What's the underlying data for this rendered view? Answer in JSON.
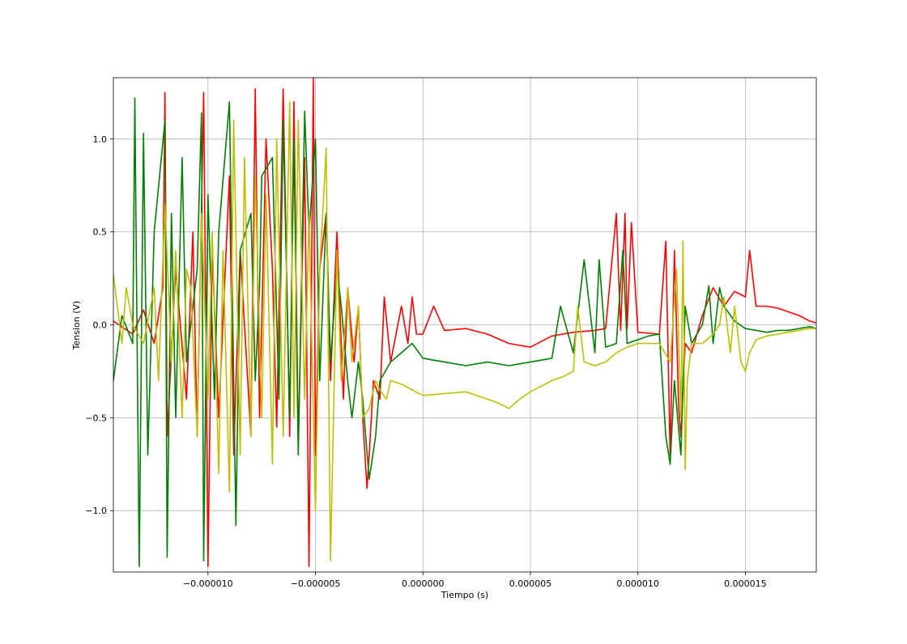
{
  "chart_data": {
    "type": "line",
    "title": "",
    "xlabel": "Tiempo (s)",
    "ylabel": "Tension (V)",
    "xlim": [
      -1.44e-05,
      1.83e-05
    ],
    "ylim": [
      -1.33,
      1.33
    ],
    "grid": true,
    "legend": "none",
    "x_ticks": [
      {
        "value": -1e-05,
        "label": "−0.000010"
      },
      {
        "value": -5e-06,
        "label": "−0.000005"
      },
      {
        "value": 0.0,
        "label": "0.000000"
      },
      {
        "value": 5e-06,
        "label": "0.000005"
      },
      {
        "value": 1e-05,
        "label": "0.000010"
      },
      {
        "value": 1.5e-05,
        "label": "0.000015"
      }
    ],
    "y_ticks": [
      {
        "value": 1.0,
        "label": "1.0"
      },
      {
        "value": 0.5,
        "label": "0.5"
      },
      {
        "value": 0.0,
        "label": "0.0"
      },
      {
        "value": -0.5,
        "label": "−0.5"
      },
      {
        "value": -1.0,
        "label": "−1.0"
      }
    ],
    "series": [
      {
        "color": "#ff0000",
        "x": [
          -1.44e-05,
          -1.35e-05,
          -1.3e-05,
          -1.25e-05,
          -1.21e-05,
          -1.2e-05,
          -1.19e-05,
          -1.15e-05,
          -1.1e-05,
          -1.07e-05,
          -1.05e-05,
          -1.02e-05,
          -1e-05,
          -9.8e-06,
          -9.5e-06,
          -9e-06,
          -8.8e-06,
          -8.5e-06,
          -8e-06,
          -7.8e-06,
          -7.6e-06,
          -7.3e-06,
          -7e-06,
          -6.8e-06,
          -6.5e-06,
          -6.2e-06,
          -6e-06,
          -5.8e-06,
          -5.5e-06,
          -5.3e-06,
          -5.1e-06,
          -5e-06,
          -4.8e-06,
          -4.5e-06,
          -4.3e-06,
          -4e-06,
          -3.7e-06,
          -3.5e-06,
          -3.2e-06,
          -3e-06,
          -2.8e-06,
          -2.6e-06,
          -2.5e-06,
          -2.3e-06,
          -2e-06,
          -1.8e-06,
          -1.5e-06,
          -1e-06,
          -7e-07,
          -5e-07,
          -3e-07,
          0.0,
          5e-07,
          1e-06,
          2e-06,
          3e-06,
          4e-06,
          5e-06,
          6e-06,
          7e-06,
          8e-06,
          8.5e-06,
          9e-06,
          9.2e-06,
          9.4e-06,
          9.5e-06,
          9.7e-06,
          1e-05,
          1.1e-05,
          1.13e-05,
          1.15e-05,
          1.17e-05,
          1.19e-05,
          1.2e-05,
          1.22e-05,
          1.25e-05,
          1.3e-05,
          1.35e-05,
          1.4e-05,
          1.45e-05,
          1.5e-05,
          1.52e-05,
          1.55e-05,
          1.6e-05,
          1.65e-05,
          1.7e-05,
          1.75e-05,
          1.8e-05,
          1.83e-05
        ],
        "y": [
          0.02,
          -0.05,
          0.08,
          -0.1,
          0.2,
          1.25,
          -0.6,
          0.3,
          -0.4,
          0.5,
          -0.6,
          1.25,
          -1.3,
          0.4,
          -0.5,
          0.8,
          -0.7,
          0.4,
          -0.6,
          1.27,
          -0.5,
          1.0,
          0.3,
          -0.55,
          1.27,
          -0.6,
          1.2,
          -0.65,
          0.9,
          -1.3,
          1.33,
          -0.7,
          0.3,
          0.6,
          -0.3,
          0.5,
          -0.4,
          0.2,
          -0.2,
          0.1,
          -0.5,
          -0.88,
          -0.7,
          -0.3,
          -0.4,
          0.15,
          -0.2,
          0.1,
          -0.1,
          0.15,
          -0.05,
          -0.05,
          0.1,
          -0.03,
          -0.02,
          -0.05,
          -0.1,
          -0.12,
          -0.06,
          -0.04,
          -0.03,
          -0.02,
          0.6,
          -0.03,
          0.6,
          -0.02,
          0.55,
          -0.04,
          -0.05,
          0.45,
          -0.7,
          0.4,
          -0.45,
          -0.6,
          -0.1,
          -0.15,
          0.05,
          0.2,
          0.1,
          0.18,
          0.15,
          0.4,
          0.1,
          0.1,
          0.09,
          0.07,
          0.05,
          0.02,
          0.01
        ]
      },
      {
        "color": "#008000",
        "x": [
          -1.44e-05,
          -1.4e-05,
          -1.35e-05,
          -1.34e-05,
          -1.32e-05,
          -1.3e-05,
          -1.28e-05,
          -1.25e-05,
          -1.2e-05,
          -1.19e-05,
          -1.17e-05,
          -1.15e-05,
          -1.12e-05,
          -1.1e-05,
          -1.05e-05,
          -1.03e-05,
          -1.02e-05,
          -1e-05,
          -9.7e-06,
          -9.5e-06,
          -9e-06,
          -8.7e-06,
          -8.5e-06,
          -8e-06,
          -7.8e-06,
          -7.6e-06,
          -7.5e-06,
          -7e-06,
          -6.7e-06,
          -6.5e-06,
          -6.2e-06,
          -6e-06,
          -5.8e-06,
          -5.5e-06,
          -5.3e-06,
          -5e-06,
          -4.8e-06,
          -4.5e-06,
          -4.3e-06,
          -4e-06,
          -3.8e-06,
          -3.5e-06,
          -3.3e-06,
          -3e-06,
          -2.8e-06,
          -2.5e-06,
          -2.2e-06,
          -2e-06,
          -1.5e-06,
          -1e-06,
          -5e-07,
          0.0,
          1e-06,
          2e-06,
          3e-06,
          4e-06,
          5e-06,
          6e-06,
          6.4e-06,
          7e-06,
          7.5e-06,
          8e-06,
          8.2e-06,
          8.5e-06,
          9e-06,
          9.3e-06,
          9.5e-06,
          1e-05,
          1.05e-05,
          1.1e-05,
          1.13e-05,
          1.15e-05,
          1.17e-05,
          1.2e-05,
          1.22e-05,
          1.25e-05,
          1.3e-05,
          1.33e-05,
          1.35e-05,
          1.38e-05,
          1.4e-05,
          1.45e-05,
          1.5e-05,
          1.6e-05,
          1.65e-05,
          1.7e-05,
          1.75e-05,
          1.8e-05,
          1.83e-05
        ],
        "y": [
          -0.3,
          0.05,
          -0.1,
          1.22,
          -1.3,
          1.03,
          -0.7,
          0.5,
          1.1,
          -1.25,
          0.6,
          -0.5,
          0.9,
          -0.2,
          0.3,
          1.14,
          -1.27,
          0.7,
          -0.4,
          0.5,
          1.2,
          -1.08,
          0.4,
          0.6,
          -0.3,
          0.2,
          0.8,
          0.9,
          -0.4,
          1.1,
          -0.5,
          1.0,
          -0.7,
          1.15,
          0.5,
          1.0,
          -0.3,
          0.6,
          -0.2,
          0.3,
          0.1,
          -0.3,
          -0.5,
          -0.2,
          -0.4,
          -0.83,
          -0.6,
          -0.3,
          -0.2,
          -0.15,
          -0.1,
          -0.18,
          -0.2,
          -0.22,
          -0.2,
          -0.22,
          -0.2,
          -0.18,
          0.1,
          -0.15,
          0.35,
          -0.15,
          0.35,
          -0.12,
          -0.1,
          0.4,
          -0.1,
          -0.08,
          -0.06,
          -0.05,
          -0.6,
          -0.75,
          -0.3,
          -0.7,
          0.1,
          -0.1,
          0.0,
          0.21,
          -0.1,
          0.2,
          0.1,
          0.02,
          -0.02,
          -0.04,
          -0.03,
          -0.03,
          -0.02,
          -0.01,
          -0.02
        ]
      },
      {
        "color": "#bfbf00",
        "x": [
          -1.44e-05,
          -1.4e-05,
          -1.38e-05,
          -1.35e-05,
          -1.3e-05,
          -1.25e-05,
          -1.23e-05,
          -1.2e-05,
          -1.17e-05,
          -1.15e-05,
          -1.12e-05,
          -1.1e-05,
          -1.08e-05,
          -1.05e-05,
          -1.03e-05,
          -1e-05,
          -9.8e-06,
          -9.5e-06,
          -9.3e-06,
          -9e-06,
          -8.8e-06,
          -8.5e-06,
          -8.3e-06,
          -8e-06,
          -7.8e-06,
          -7.5e-06,
          -7.3e-06,
          -7e-06,
          -6.8e-06,
          -6.5e-06,
          -6.2e-06,
          -6e-06,
          -5.8e-06,
          -5.5e-06,
          -5.3e-06,
          -5e-06,
          -4.8e-06,
          -4.5e-06,
          -4.3e-06,
          -4e-06,
          -3.8e-06,
          -3.5e-06,
          -3.3e-06,
          -3e-06,
          -2.8e-06,
          -2.5e-06,
          -2.2e-06,
          -2e-06,
          -1.7e-06,
          -1.5e-06,
          -1e-06,
          0.0,
          1e-06,
          2e-06,
          3e-06,
          3.5e-06,
          4e-06,
          4.5e-06,
          5e-06,
          6e-06,
          6.5e-06,
          7e-06,
          7.2e-06,
          7.5e-06,
          8e-06,
          8.5e-06,
          9e-06,
          9.5e-06,
          1e-05,
          1.1e-05,
          1.15e-05,
          1.18e-05,
          1.2e-05,
          1.21e-05,
          1.22e-05,
          1.23e-05,
          1.25e-05,
          1.3e-05,
          1.35e-05,
          1.38e-05,
          1.4e-05,
          1.43e-05,
          1.45e-05,
          1.48e-05,
          1.5e-05,
          1.52e-05,
          1.55e-05,
          1.6e-05,
          1.65e-05,
          1.7e-05,
          1.75e-05,
          1.8e-05,
          1.83e-05
        ],
        "y": [
          0.27,
          -0.1,
          0.2,
          0.0,
          -0.1,
          0.2,
          -0.3,
          0.65,
          -0.2,
          0.4,
          -0.5,
          0.3,
          0.2,
          -0.6,
          0.6,
          -0.4,
          0.5,
          -0.8,
          0.4,
          -0.9,
          1.1,
          -0.7,
          0.9,
          -0.6,
          0.8,
          -0.5,
          0.7,
          -0.75,
          1.0,
          -0.6,
          1.2,
          -0.5,
          1.1,
          -0.4,
          0.6,
          -1.0,
          0.3,
          0.95,
          -1.27,
          0.4,
          -0.3,
          0.2,
          -0.2,
          0.1,
          -0.5,
          -0.45,
          -0.3,
          -0.35,
          -0.4,
          -0.3,
          -0.32,
          -0.38,
          -0.37,
          -0.36,
          -0.4,
          -0.42,
          -0.45,
          -0.4,
          -0.36,
          -0.3,
          -0.28,
          -0.25,
          0.1,
          -0.2,
          -0.22,
          -0.2,
          -0.15,
          -0.12,
          -0.1,
          -0.1,
          -0.2,
          0.3,
          -0.5,
          0.45,
          -0.78,
          -0.3,
          -0.1,
          -0.1,
          -0.05,
          0.0,
          0.15,
          -0.15,
          0.1,
          -0.2,
          -0.25,
          -0.15,
          -0.08,
          -0.06,
          -0.05,
          -0.04,
          -0.03,
          -0.02,
          -0.02
        ]
      }
    ]
  }
}
